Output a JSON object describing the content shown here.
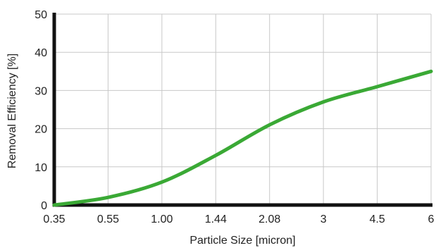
{
  "chart_data": {
    "type": "line",
    "title": "",
    "xlabel": "Particle Size [micron]",
    "ylabel": "Removal Efficiency [%]",
    "x_scale": "categorical",
    "categories": [
      "0.35",
      "0.55",
      "1.00",
      "1.44",
      "2.08",
      "3",
      "4.5",
      "6"
    ],
    "yticks": [
      "0",
      "10",
      "20",
      "30",
      "40",
      "50"
    ],
    "ylim": [
      0,
      50
    ],
    "grid": true,
    "legend": "none",
    "series": [
      {
        "color": "#3aa935",
        "values": [
          0,
          2,
          6,
          13,
          21,
          27,
          31,
          35
        ]
      }
    ]
  }
}
